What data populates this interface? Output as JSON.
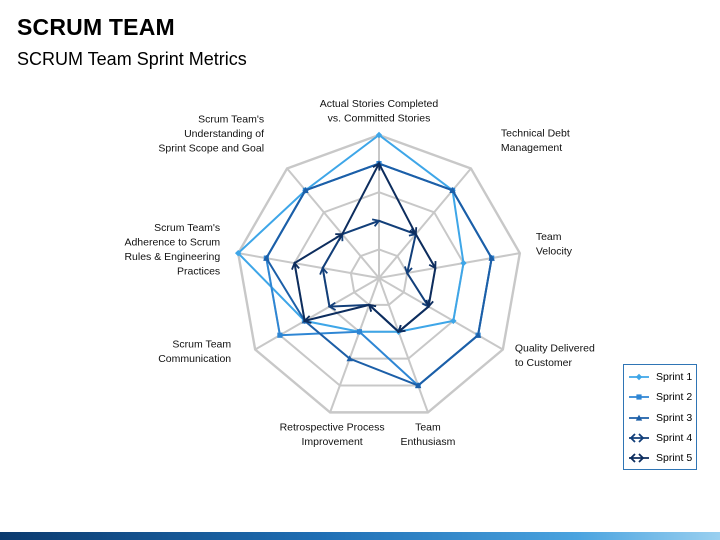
{
  "header": {
    "title": "SCRUM TEAM",
    "subtitle": "SCRUM Team Sprint Metrics"
  },
  "chart_data": {
    "type": "radar",
    "axes": [
      "Actual Stories Completed vs. Committed Stories",
      "Technical Debt Management",
      "Team Velocity",
      "Quality Delivered to Customer",
      "Team Enthusiasm",
      "Retrospective Process Improvement",
      "Scrum Team Communication",
      "Scrum Team's Adherence to Scrum Rules & Engineering Practices",
      "Scrum Team's Understanding of Sprint Scope and Goal"
    ],
    "axis_label_lines": [
      [
        "Actual Stories Completed",
        "vs. Committed Stories"
      ],
      [
        "Technical Debt",
        "Management"
      ],
      [
        "Team",
        "Velocity"
      ],
      [
        "Quality Delivered",
        "to Customer"
      ],
      [
        "Team",
        "Enthusiasm"
      ],
      [
        "Retrospective Process",
        "Improvement"
      ],
      [
        "Scrum Team",
        "Communication"
      ],
      [
        "Scrum Team's",
        "Adherence to Scrum",
        "Rules & Engineering",
        "Practices"
      ],
      [
        "Scrum Team's",
        "Understanding of",
        "Sprint Scope and Goal"
      ]
    ],
    "rlim": [
      0,
      5
    ],
    "grid_levels": 5,
    "series": [
      {
        "name": "Sprint 1",
        "values": [
          5,
          4,
          3,
          3,
          2,
          2,
          3,
          5,
          4
        ],
        "color": "#3ea6e8",
        "marker": "diamond"
      },
      {
        "name": "Sprint 2",
        "values": [
          4,
          4,
          4,
          4,
          4,
          2,
          4,
          4,
          4
        ],
        "color": "#2e86d4",
        "marker": "square"
      },
      {
        "name": "Sprint 3",
        "values": [
          4,
          4,
          4,
          4,
          4,
          3,
          3,
          4,
          4
        ],
        "color": "#1c5fa8",
        "marker": "triangle"
      },
      {
        "name": "Sprint 4",
        "values": [
          2,
          2,
          1,
          2,
          2,
          1,
          2,
          2,
          2
        ],
        "color": "#123f7a",
        "marker": "arrow"
      },
      {
        "name": "Sprint 5",
        "values": [
          4,
          2,
          2,
          2,
          2,
          1,
          3,
          3,
          2
        ],
        "color": "#0d2d5e",
        "marker": "arrow"
      }
    ],
    "legend": "right-bottom",
    "grid": true
  }
}
